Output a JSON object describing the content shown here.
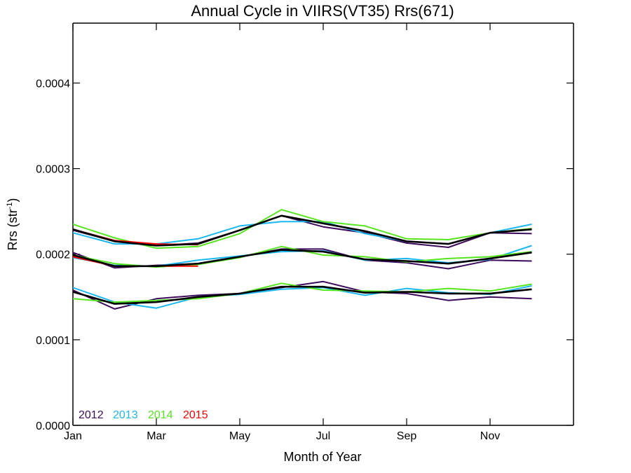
{
  "chart_data": {
    "type": "line",
    "title": "Annual Cycle in VIIRS(VT35) Rrs(671)",
    "xlabel": "Month of Year",
    "ylabel_main": "Rrs (str",
    "ylabel_sup": "-1",
    "ylabel_close": ")",
    "xlim": [
      1,
      13
    ],
    "ylim": [
      0.0,
      0.00047
    ],
    "x_ticks": [
      {
        "value": 1,
        "label": "Jan"
      },
      {
        "value": 3,
        "label": "Mar"
      },
      {
        "value": 5,
        "label": "May"
      },
      {
        "value": 7,
        "label": "Jul"
      },
      {
        "value": 9,
        "label": "Sep"
      },
      {
        "value": 11,
        "label": "Nov"
      }
    ],
    "y_ticks": [
      {
        "value": 0.0,
        "label": "0.0000"
      },
      {
        "value": 0.0001,
        "label": "0.0001"
      },
      {
        "value": 0.0002,
        "label": "0.0002"
      },
      {
        "value": 0.0003,
        "label": "0.0003"
      },
      {
        "value": 0.0004,
        "label": "0.0004"
      }
    ],
    "legend_position": "bottom-left",
    "legend": [
      {
        "label": "2012",
        "color": "#3d0a5c"
      },
      {
        "label": "2013",
        "color": "#1ab8f0"
      },
      {
        "label": "2014",
        "color": "#55e61e"
      },
      {
        "label": "2015",
        "color": "#ff0000"
      }
    ],
    "series": [
      {
        "group": "upper",
        "year": "2012",
        "color": "#3d0a5c",
        "x": [
          1,
          2,
          3,
          4,
          5,
          6,
          7,
          8,
          9,
          10,
          11,
          12
        ],
        "values": [
          0.000228,
          0.000215,
          0.00021,
          0.000213,
          0.000228,
          0.000245,
          0.000232,
          0.000225,
          0.000213,
          0.000208,
          0.000225,
          0.000224
        ]
      },
      {
        "group": "upper",
        "year": "2013",
        "color": "#1ab8f0",
        "x": [
          1,
          2,
          3,
          4,
          5,
          6,
          7,
          8,
          9,
          10,
          11,
          12
        ],
        "values": [
          0.000225,
          0.000212,
          0.000212,
          0.000218,
          0.000233,
          0.000238,
          0.000238,
          0.000224,
          0.000215,
          0.000212,
          0.000225,
          0.000235
        ]
      },
      {
        "group": "upper",
        "year": "2014",
        "color": "#55e61e",
        "x": [
          1,
          2,
          3,
          4,
          5,
          6,
          7,
          8,
          9,
          10,
          11,
          12
        ],
        "values": [
          0.000235,
          0.000219,
          0.000207,
          0.000209,
          0.000224,
          0.000252,
          0.000238,
          0.000233,
          0.000218,
          0.000217,
          0.000225,
          0.00023
        ]
      },
      {
        "group": "upper",
        "year": "2015",
        "color": "#ff0000",
        "x": [
          1,
          2,
          3,
          4
        ],
        "values": [
          0.000229,
          0.000216,
          0.000212,
          0.000211
        ]
      },
      {
        "group": "upper",
        "year": "mean",
        "color": "#000000",
        "x": [
          1,
          2,
          3,
          4,
          5,
          6,
          7,
          8,
          9,
          10,
          11,
          12
        ],
        "values": [
          0.000229,
          0.000215,
          0.00021,
          0.000212,
          0.000228,
          0.000245,
          0.000236,
          0.000227,
          0.000215,
          0.000212,
          0.000225,
          0.000229
        ]
      },
      {
        "group": "middle",
        "year": "2012",
        "color": "#3d0a5c",
        "x": [
          1,
          2,
          3,
          4,
          5,
          6,
          7,
          8,
          9,
          10,
          11,
          12
        ],
        "values": [
          0.000202,
          0.000184,
          0.000187,
          0.000189,
          0.000197,
          0.000206,
          0.000206,
          0.000193,
          0.00019,
          0.000183,
          0.000193,
          0.000192
        ]
      },
      {
        "group": "middle",
        "year": "2013",
        "color": "#1ab8f0",
        "x": [
          1,
          2,
          3,
          4,
          5,
          6,
          7,
          8,
          9,
          10,
          11,
          12
        ],
        "values": [
          0.000196,
          0.000187,
          0.000186,
          0.000193,
          0.000198,
          0.000203,
          0.000204,
          0.000193,
          0.000195,
          0.00019,
          0.000194,
          0.00021
        ]
      },
      {
        "group": "middle",
        "year": "2014",
        "color": "#55e61e",
        "x": [
          1,
          2,
          3,
          4,
          5,
          6,
          7,
          8,
          9,
          10,
          11,
          12
        ],
        "values": [
          0.000199,
          0.000189,
          0.000185,
          0.000188,
          0.000196,
          0.000209,
          0.000199,
          0.000197,
          0.000191,
          0.000195,
          0.000197,
          0.000203
        ]
      },
      {
        "group": "middle",
        "year": "2015",
        "color": "#ff0000",
        "x": [
          1,
          2,
          3,
          4
        ],
        "values": [
          0.000197,
          0.000186,
          0.000186,
          0.000186
        ]
      },
      {
        "group": "middle",
        "year": "mean",
        "color": "#000000",
        "x": [
          1,
          2,
          3,
          4,
          5,
          6,
          7,
          8,
          9,
          10,
          11,
          12
        ],
        "values": [
          0.000199,
          0.000186,
          0.000186,
          0.000189,
          0.000197,
          0.000205,
          0.000203,
          0.000194,
          0.000192,
          0.000189,
          0.000195,
          0.000202
        ]
      },
      {
        "group": "lower",
        "year": "2012",
        "color": "#3d0a5c",
        "x": [
          1,
          2,
          3,
          4,
          5,
          6,
          7,
          8,
          9,
          10,
          11,
          12
        ],
        "values": [
          0.000158,
          0.000136,
          0.000148,
          0.000152,
          0.000154,
          0.000161,
          0.000168,
          0.000156,
          0.000154,
          0.000146,
          0.00015,
          0.000148
        ]
      },
      {
        "group": "lower",
        "year": "2013",
        "color": "#1ab8f0",
        "x": [
          1,
          2,
          3,
          4,
          5,
          6,
          7,
          8,
          9,
          10,
          11,
          12
        ],
        "values": [
          0.000161,
          0.000144,
          0.000137,
          0.00015,
          0.000153,
          0.000159,
          0.000161,
          0.000152,
          0.00016,
          0.000155,
          0.000153,
          0.000163
        ]
      },
      {
        "group": "lower",
        "year": "2014",
        "color": "#55e61e",
        "x": [
          1,
          2,
          3,
          4,
          5,
          6,
          7,
          8,
          9,
          10,
          11,
          12
        ],
        "values": [
          0.000148,
          0.000144,
          0.000146,
          0.000148,
          0.000154,
          0.000166,
          0.000158,
          0.000157,
          0.000156,
          0.00016,
          0.000157,
          0.000165
        ]
      },
      {
        "group": "lower",
        "year": "mean",
        "color": "#000000",
        "x": [
          1,
          2,
          3,
          4,
          5,
          6,
          7,
          8,
          9,
          10,
          11,
          12
        ],
        "values": [
          0.000156,
          0.000142,
          0.000144,
          0.00015,
          0.000154,
          0.000162,
          0.000162,
          0.000155,
          0.000156,
          0.000154,
          0.000154,
          0.000159
        ]
      }
    ]
  }
}
